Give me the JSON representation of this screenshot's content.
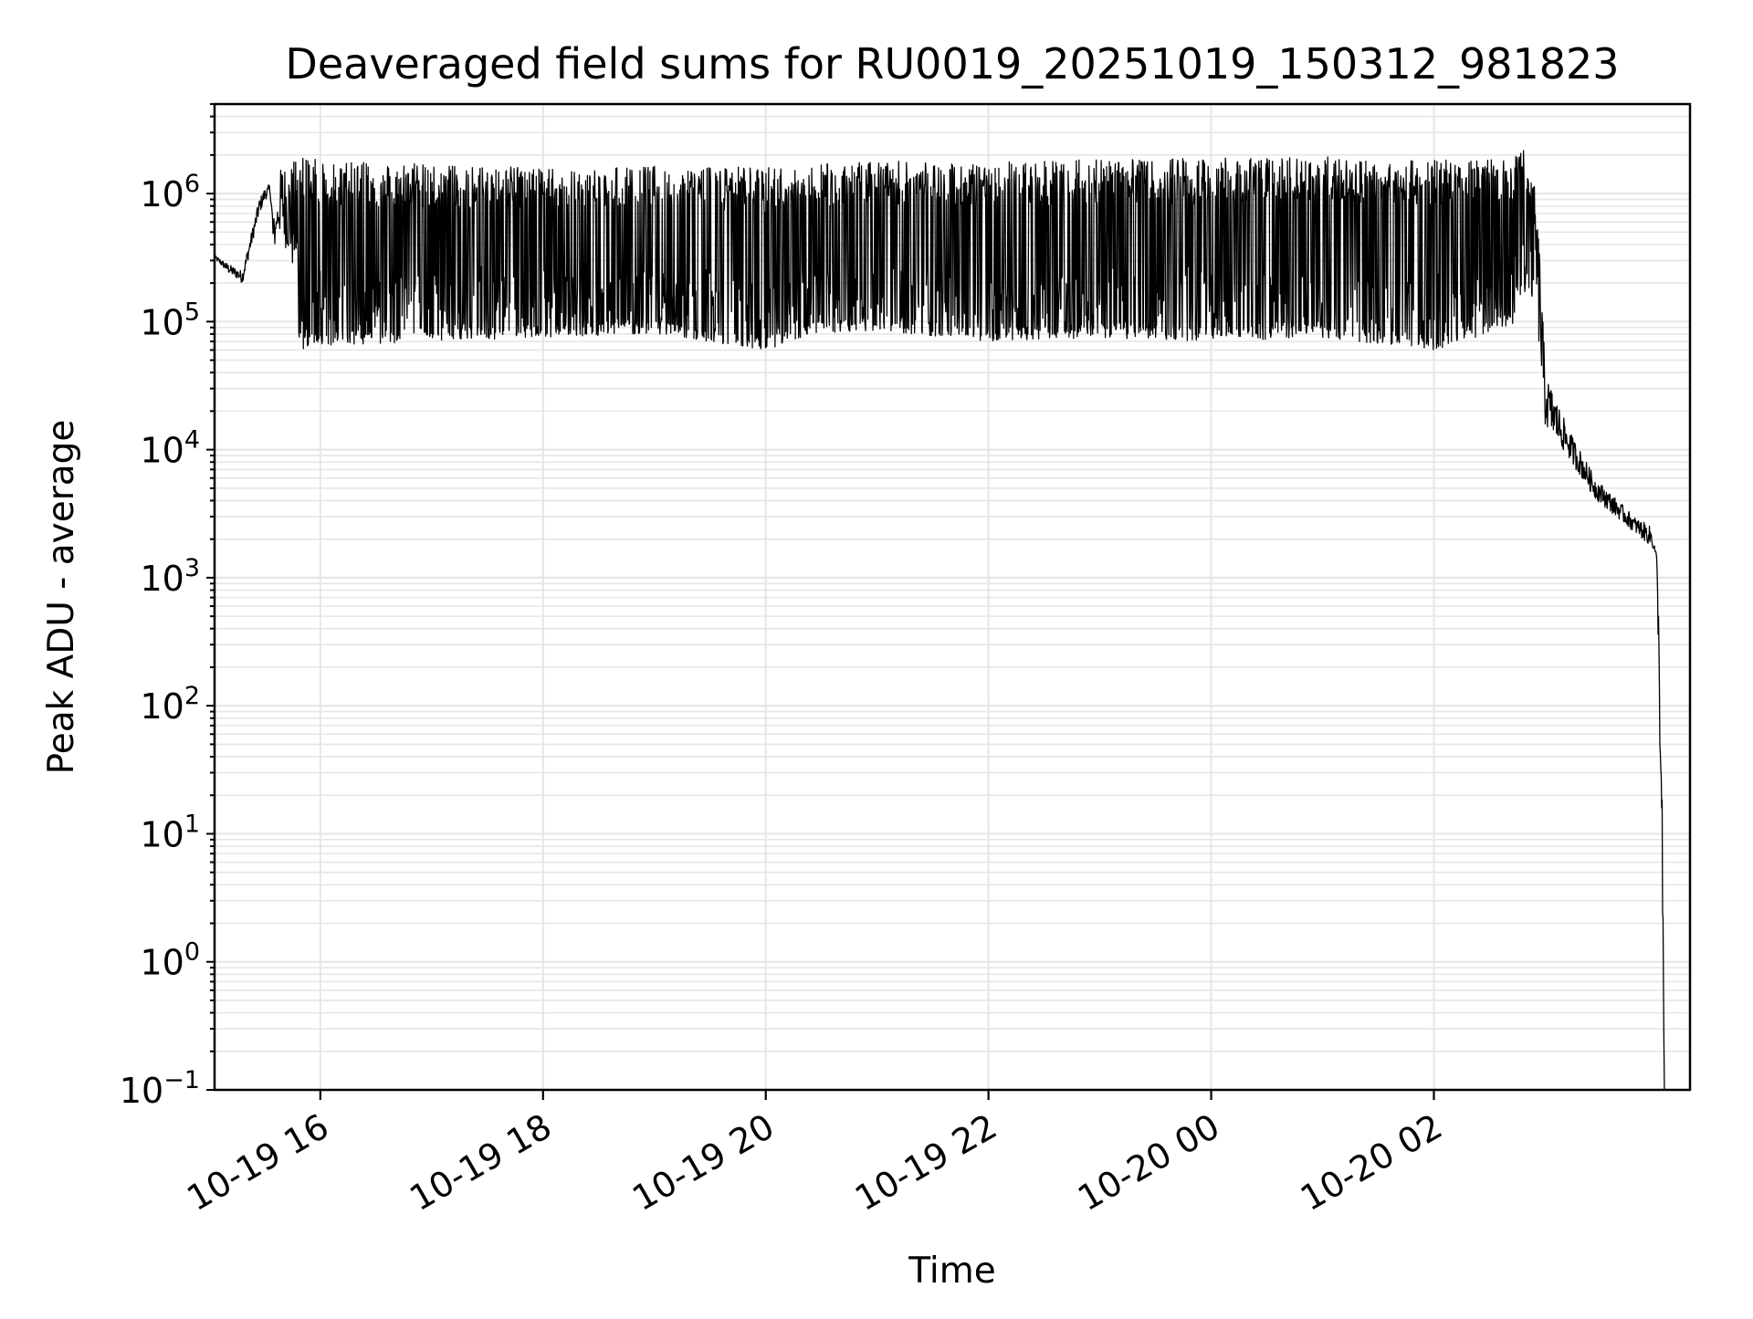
{
  "chart_data": {
    "type": "line",
    "title": "Deaveraged field sums for RU0019_20251019_150312_981823",
    "xlabel": "Time",
    "ylabel": "Peak ADU - average",
    "yscale": "log",
    "ylim": [
      0.1,
      5000000
    ],
    "xlim_hours": [
      -0.95,
      12.3
    ],
    "x_tick_labels": [
      "10-19 16",
      "10-19 18",
      "10-19 20",
      "10-19 22",
      "10-20 00",
      "10-20 02"
    ],
    "x_tick_hours": [
      0,
      2,
      4,
      6,
      8,
      10
    ],
    "y_tick_base": "10",
    "y_tick_exponents": [
      "−1",
      "0",
      "1",
      "2",
      "3",
      "4",
      "5",
      "6"
    ],
    "y_tick_values": [
      0.1,
      1,
      10,
      100,
      1000,
      10000,
      100000,
      1000000
    ],
    "grid": true,
    "line_color": "#000000",
    "grid_color": "#e6e6e6",
    "series": [
      {
        "name": "deaveraged field sum",
        "x_hours": [
          -0.95,
          -0.82,
          -0.75,
          -0.7,
          -0.55,
          -0.5,
          -0.45,
          -0.42,
          -0.4,
          -0.35,
          -0.3,
          -0.25,
          -0.2,
          -0.15,
          0.0,
          1.0,
          2.0,
          3.0,
          4.0,
          4.5,
          5.0,
          6.0,
          7.0,
          8.0,
          9.0,
          10.0,
          10.7,
          10.8,
          10.85,
          10.9,
          10.95,
          11.0,
          11.2,
          11.45,
          11.8,
          11.95,
          12.0,
          12.02,
          12.05,
          12.07
        ],
        "envelope_high": [
          330000,
          280000,
          260000,
          250000,
          900000,
          1100000,
          1200000,
          700000,
          600000,
          1800000,
          1700000,
          1800000,
          1900000,
          2000000,
          1800000,
          1700000,
          1600000,
          1650000,
          1600000,
          1700000,
          1800000,
          1750000,
          1850000,
          1900000,
          1950000,
          1850000,
          1900000,
          2300000,
          1500000,
          1200000,
          400000,
          40000,
          15000,
          6000,
          3000,
          2500,
          1500,
          500,
          20,
          0.1
        ],
        "envelope_low": [
          300000,
          220000,
          200000,
          180000,
          600000,
          800000,
          900000,
          160000,
          500000,
          250000,
          180000,
          100000,
          80000,
          60000,
          65000,
          70000,
          75000,
          80000,
          60000,
          80000,
          85000,
          70000,
          75000,
          70000,
          75000,
          60000,
          90000,
          180000,
          150000,
          150000,
          20000,
          10000,
          7000,
          3500,
          2000,
          1500,
          1500,
          100,
          1,
          0.1
        ]
      }
    ]
  }
}
